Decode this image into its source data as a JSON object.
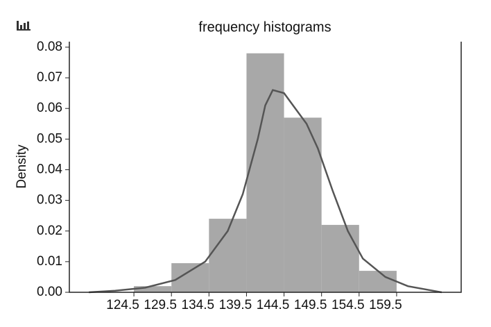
{
  "chart_data": {
    "type": "histogram",
    "title": "frequency histograms",
    "y_label": "Density",
    "bins": [
      124.5,
      129.5,
      134.5,
      139.5,
      144.5,
      149.5,
      154.5,
      159.5
    ],
    "values": [
      0.002,
      0.0095,
      0.024,
      0.078,
      0.057,
      0.022,
      0.007
    ],
    "color": "#a8a8a8",
    "kde": {
      "color": "#555555",
      "x": [
        118.5,
        122,
        126,
        130,
        134,
        137,
        139,
        141,
        142,
        143,
        144.5,
        146,
        147.5,
        149,
        151,
        153,
        155,
        158,
        161,
        165.5
      ],
      "values": [
        0,
        0.0005,
        0.0015,
        0.004,
        0.01,
        0.02,
        0.032,
        0.05,
        0.061,
        0.066,
        0.065,
        0.06,
        0.055,
        0.047,
        0.033,
        0.02,
        0.011,
        0.005,
        0.002,
        0
      ]
    },
    "xlim": [
      115.9,
      168.1
    ],
    "ylim": [
      0,
      0.0818
    ],
    "xticks": [
      124.5,
      129.5,
      134.5,
      139.5,
      144.5,
      149.5,
      154.5,
      159.5
    ],
    "yticks": [
      {
        "value": 0,
        "label": "0.00"
      },
      {
        "value": 0.01,
        "label": "0.01"
      },
      {
        "value": 0.02,
        "label": "0.02"
      },
      {
        "value": 0.03,
        "label": "0.03"
      },
      {
        "value": 0.04,
        "label": "0.04"
      },
      {
        "value": 0.05,
        "label": "0.05"
      },
      {
        "value": 0.06,
        "label": "0.06"
      },
      {
        "value": 0.07,
        "label": "0.07"
      },
      {
        "value": 0.08,
        "label": "0.08"
      }
    ]
  }
}
